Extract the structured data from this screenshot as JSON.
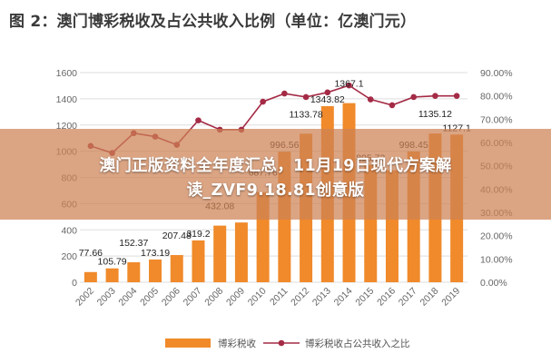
{
  "header": {
    "title": "图 2：澳门博彩税收及占公共收入比例（单位：亿澳门元）"
  },
  "overlay": {
    "line1": "澳门正版资料全年度汇总，11月19日现代方案解",
    "line2": "读_ZVF9.18.81创意版"
  },
  "colors": {
    "bar": "#F08A2B",
    "line": "#A42A45",
    "axis_text": "#666666",
    "grid": "#DDDDDD"
  },
  "chart_data": {
    "type": "bar",
    "title": "图 2：澳门博彩税收及占公共收入比例（单位：亿澳门元）",
    "categories": [
      "2002",
      "2003",
      "2004",
      "2005",
      "2006",
      "2007",
      "2008",
      "2009",
      "2010",
      "2011",
      "2012",
      "2013",
      "2014",
      "2015",
      "2016",
      "2017",
      "2018",
      "2019"
    ],
    "series": [
      {
        "name": "博彩税收",
        "type": "bar",
        "axis": "left",
        "values": [
          77.66,
          105.79,
          152.37,
          173.19,
          207.48,
          319.2,
          432.08,
          456.0,
          687.76,
          996.56,
          1133.78,
          1343.82,
          1367.1,
          895.73,
          854.0,
          998.45,
          1135.12,
          1127.1
        ],
        "labels": [
          "77.66",
          "105.79",
          "152.37",
          "173.19",
          "207.48",
          "319.2",
          "432.08",
          "",
          "687.76",
          "996.56",
          "1133.78",
          "1343.82",
          "1367.1",
          "895.73",
          "",
          "998.45",
          "1135.12",
          "1127.1"
        ]
      },
      {
        "name": "博彩税收占公共收入之比",
        "type": "line",
        "axis": "right",
        "values": [
          0.585,
          0.555,
          0.64,
          0.625,
          0.59,
          0.695,
          0.655,
          0.655,
          0.775,
          0.81,
          0.795,
          0.815,
          0.845,
          0.785,
          0.76,
          0.795,
          0.8,
          0.8
        ]
      }
    ],
    "y_left": {
      "min": 0,
      "max": 1600,
      "ticks": [
        0,
        200,
        400,
        600,
        800,
        1000,
        1200,
        1400,
        1600
      ],
      "tick_labels": [
        "0",
        "200",
        "400",
        "600",
        "800",
        "1000",
        "1200",
        "1400",
        "1600"
      ]
    },
    "y_right": {
      "min": 0,
      "max": 0.9,
      "ticks": [
        0,
        0.1,
        0.2,
        0.3,
        0.4,
        0.5,
        0.6,
        0.7,
        0.8,
        0.9
      ],
      "tick_labels": [
        "0.00%",
        "10.00%",
        "20.00%",
        "30.00%",
        "40.00%",
        "50.00%",
        "60.00%",
        "70.00%",
        "80.00%",
        "90.00%"
      ]
    },
    "grid": true,
    "legend_position": "bottom"
  }
}
